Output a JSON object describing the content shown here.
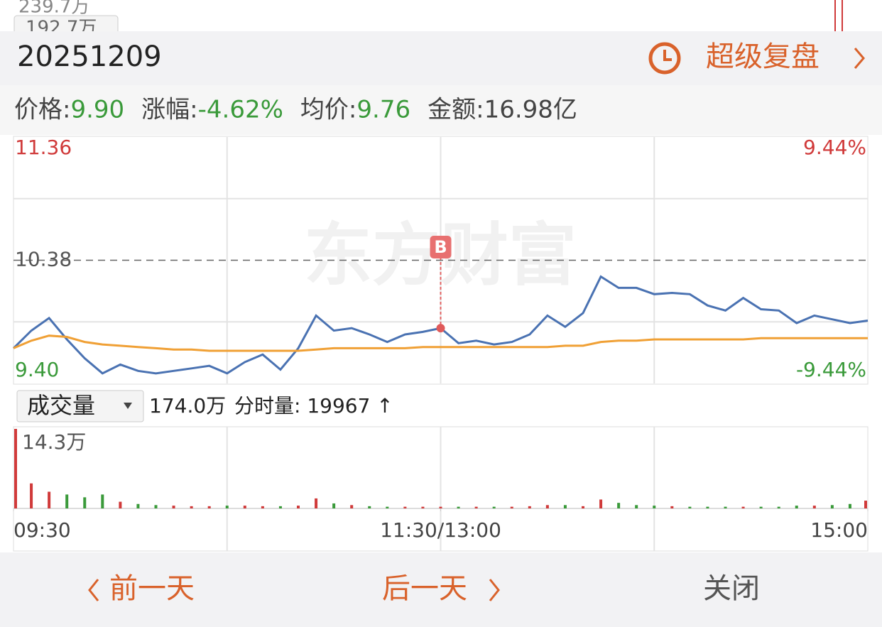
{
  "top_partial": [
    "239.7万",
    "192.7万"
  ],
  "header": {
    "date": "20251209",
    "replay": "超级复盘"
  },
  "stats": [
    {
      "label": "价格:",
      "value": "9.90"
    },
    {
      "label": "涨幅:",
      "value": "-4.62%"
    },
    {
      "label": "均价:",
      "value": "9.76"
    },
    {
      "label": "金额:",
      "value": "16.98亿"
    }
  ],
  "volume_bar": {
    "selector": "成交量",
    "total": "174.0万",
    "minute": "分时量: 19967 ↑"
  },
  "chart_data": [
    {
      "type": "line",
      "watermark": "东方财富",
      "x": [
        0,
        5,
        10,
        15,
        20,
        25,
        30,
        35,
        40,
        45,
        50,
        55,
        60,
        65,
        70,
        75,
        80,
        85,
        90,
        95,
        100,
        105,
        110,
        115,
        120,
        125,
        130,
        135,
        140,
        145,
        150,
        155,
        160,
        165,
        170,
        175,
        180,
        185,
        190,
        195,
        200,
        205,
        210,
        215,
        220,
        225,
        230,
        235,
        240
      ],
      "xlim": [
        0,
        240
      ],
      "ylim": [
        9.4,
        11.36
      ],
      "yticks": [
        11.36,
        10.38,
        {
          "value": 9.4,
          "label": "9.40"
        }
      ],
      "y2lim": [
        -9.44,
        9.44
      ],
      "y2ticks": [
        {
          "value": 9.44,
          "label": "9.44%"
        },
        {
          "value": -9.44,
          "label": "-9.44%"
        }
      ],
      "series": [
        {
          "color": "#4a72b2",
          "values": [
            9.68,
            9.82,
            9.92,
            9.75,
            9.6,
            9.48,
            9.55,
            9.5,
            9.48,
            9.5,
            9.52,
            9.54,
            9.48,
            9.57,
            9.63,
            9.51,
            9.68,
            9.94,
            9.82,
            9.84,
            9.79,
            9.73,
            9.79,
            9.81,
            9.84,
            9.72,
            9.74,
            9.71,
            9.73,
            9.79,
            9.94,
            9.85,
            9.96,
            10.25,
            10.16,
            10.16,
            10.11,
            10.12,
            10.11,
            10.02,
            9.98,
            10.08,
            9.99,
            9.98,
            9.88,
            9.94,
            9.91,
            9.88,
            9.9
          ]
        },
        {
          "color": "#f0a035",
          "values": [
            9.68,
            9.74,
            9.78,
            9.77,
            9.73,
            9.71,
            9.7,
            9.69,
            9.68,
            9.67,
            9.67,
            9.66,
            9.66,
            9.66,
            9.66,
            9.66,
            9.66,
            9.67,
            9.68,
            9.68,
            9.68,
            9.68,
            9.68,
            9.69,
            9.69,
            9.69,
            9.69,
            9.69,
            9.69,
            9.69,
            9.69,
            9.7,
            9.7,
            9.73,
            9.74,
            9.74,
            9.75,
            9.75,
            9.75,
            9.75,
            9.75,
            9.75,
            9.76,
            9.76,
            9.76,
            9.76,
            9.76,
            9.76,
            9.76
          ]
        }
      ],
      "annotations": [
        {
          "text": "B",
          "x": 120,
          "y": 9.84
        }
      ]
    },
    {
      "type": "bar",
      "x": [
        0,
        5,
        10,
        15,
        20,
        25,
        30,
        35,
        40,
        45,
        50,
        55,
        60,
        65,
        70,
        75,
        80,
        85,
        90,
        95,
        100,
        105,
        110,
        115,
        120,
        125,
        130,
        135,
        140,
        145,
        150,
        155,
        160,
        165,
        170,
        175,
        180,
        185,
        190,
        195,
        200,
        205,
        210,
        215,
        220,
        225,
        230,
        235,
        240
      ],
      "values": [
        14.3,
        4.5,
        3.0,
        2.5,
        2.0,
        2.5,
        1.2,
        0.8,
        0.6,
        0.5,
        0.4,
        0.4,
        0.5,
        0.5,
        0.4,
        0.4,
        0.5,
        1.8,
        0.9,
        0.6,
        0.4,
        0.3,
        0.3,
        0.3,
        0.3,
        0.3,
        0.3,
        0.3,
        0.3,
        0.4,
        0.6,
        0.6,
        0.4,
        1.6,
        1.0,
        0.6,
        0.5,
        0.4,
        0.3,
        0.3,
        0.3,
        0.3,
        0.3,
        0.3,
        0.5,
        0.5,
        0.6,
        0.8,
        1.4
      ],
      "colors": [
        "#d03a3a",
        "#d03a3a",
        "#d03a3a",
        "#3a9a3a",
        "#3a9a3a",
        "#3a9a3a",
        "#d03a3a",
        "#3a9a3a",
        "#3a9a3a",
        "#d03a3a",
        "#d03a3a",
        "#d03a3a",
        "#3a9a3a",
        "#d03a3a",
        "#d03a3a",
        "#3a9a3a",
        "#d03a3a",
        "#d03a3a",
        "#3a9a3a",
        "#d03a3a",
        "#3a9a3a",
        "#3a9a3a",
        "#d03a3a",
        "#d03a3a",
        "#d03a3a",
        "#3a9a3a",
        "#d03a3a",
        "#3a9a3a",
        "#d03a3a",
        "#d03a3a",
        "#d03a3a",
        "#3a9a3a",
        "#d03a3a",
        "#d03a3a",
        "#3a9a3a",
        "#3a9a3a",
        "#3a9a3a",
        "#d03a3a",
        "#3a9a3a",
        "#3a9a3a",
        "#3a9a3a",
        "#d03a3a",
        "#3a9a3a",
        "#3a9a3a",
        "#3a9a3a",
        "#d03a3a",
        "#3a9a3a",
        "#3a9a3a",
        "#d03a3a"
      ],
      "xlim": [
        0,
        240
      ],
      "ylim": [
        0,
        14.3
      ],
      "yticks": [
        {
          "value": 14.3,
          "label": "14.3万"
        }
      ],
      "xticks": [
        {
          "value": 0,
          "label": "09:30"
        },
        {
          "value": 120,
          "label": "11:30/13:00"
        },
        {
          "value": 240,
          "label": "15:00"
        }
      ]
    }
  ],
  "nav": {
    "prev": "前一天",
    "next": "后一天",
    "close": "关闭"
  }
}
